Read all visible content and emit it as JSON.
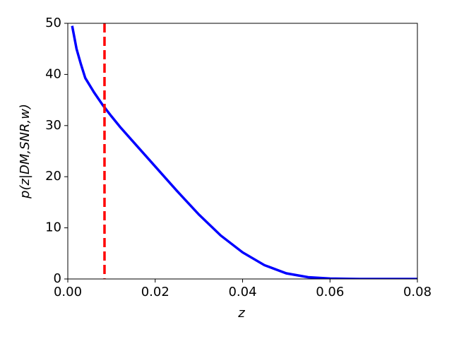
{
  "chart_data": {
    "type": "line",
    "xlabel": "z",
    "ylabel": "p(z|DM,SNR,w)",
    "series": [
      {
        "color": "#0000ff",
        "x": [
          0.001,
          0.002,
          0.003,
          0.004,
          0.006,
          0.008,
          0.01,
          0.012,
          0.015,
          0.02,
          0.025,
          0.03,
          0.035,
          0.04,
          0.045,
          0.05,
          0.055,
          0.06,
          0.065,
          0.07,
          0.08
        ],
        "values": [
          49.5,
          45,
          42,
          39.3,
          36.5,
          34,
          31.8,
          29.7,
          26.8,
          22,
          17.2,
          12.6,
          8.5,
          5.2,
          2.7,
          1.1,
          0.35,
          0.08,
          0.01,
          0,
          0
        ]
      }
    ],
    "vline": {
      "x": 0.0084,
      "color": "#ff0000"
    },
    "xlim": [
      0,
      0.08
    ],
    "xticks": [
      {
        "value": 0,
        "label": "0.00"
      },
      {
        "value": 0.02,
        "label": "0.02"
      },
      {
        "value": 0.04,
        "label": "0.04"
      },
      {
        "value": 0.06,
        "label": "0.06"
      },
      {
        "value": 0.08,
        "label": "0.08"
      }
    ],
    "ylim": [
      0,
      50
    ],
    "yticks": [
      0,
      10,
      20,
      30,
      40,
      50
    ]
  }
}
